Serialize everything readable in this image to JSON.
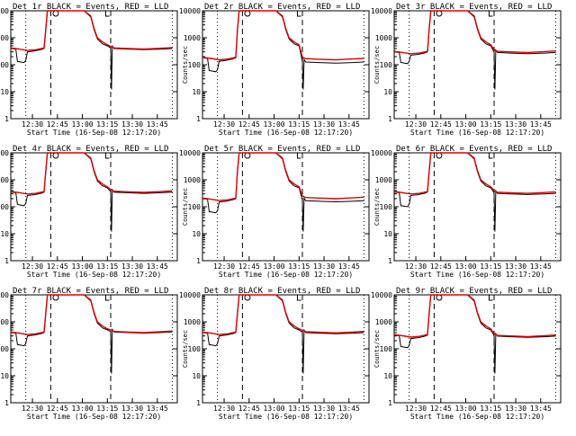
{
  "chart_data": {
    "type": "line",
    "layout": "3x3 grid",
    "y_scale": "log",
    "ylim": [
      1,
      10000
    ],
    "xlim_minutes_after_12_17_20": [
      0,
      100
    ],
    "xlabel": "Start Time (16-Sep-08 12:17:20)",
    "ylabel": "Counts/sec",
    "x_tick_labels": [
      "12:30",
      "12:45",
      "13:00",
      "13:15",
      "13:30",
      "13:45"
    ],
    "y_tick_labels": [
      "1",
      "10",
      "100",
      "1000",
      "10000"
    ],
    "series_legend": "BLACK = Events, RED = LLD",
    "panels": [
      {
        "title": "Det 1r BLACK = Events, RED = LLD",
        "base": 400,
        "dip": 120,
        "post_black": 380,
        "post_red": 400
      },
      {
        "title": "Det 2r BLACK = Events, RED = LLD",
        "base": 180,
        "dip": 55,
        "post_black": 120,
        "post_red": 160
      },
      {
        "title": "Det 3r BLACK = Events, RED = LLD",
        "base": 300,
        "dip": 110,
        "post_black": 270,
        "post_red": 300
      },
      {
        "title": "Det 4r BLACK = Events, RED = LLD",
        "base": 350,
        "dip": 110,
        "post_black": 330,
        "post_red": 360
      },
      {
        "title": "Det 5r BLACK = Events, RED = LLD",
        "base": 200,
        "dip": 60,
        "post_black": 160,
        "post_red": 210
      },
      {
        "title": "Det 6r BLACK = Events, RED = LLD",
        "base": 350,
        "dip": 100,
        "post_black": 300,
        "post_red": 330
      },
      {
        "title": "Det 7r BLACK = Events, RED = LLD",
        "base": 400,
        "dip": 130,
        "post_black": 400,
        "post_red": 420
      },
      {
        "title": "Det 8r BLACK = Events, RED = LLD",
        "base": 400,
        "dip": 130,
        "post_black": 380,
        "post_red": 410
      },
      {
        "title": "Det 9r BLACK = Events, RED = LLD",
        "base": 320,
        "dip": 110,
        "post_black": 280,
        "post_red": 300
      }
    ],
    "vertical_lines": {
      "dotted_minutes": [
        9,
        97
      ],
      "dashed_minutes": [
        24,
        60
      ]
    },
    "colors": {
      "events": "#000000",
      "lld": "#dd0000"
    }
  }
}
